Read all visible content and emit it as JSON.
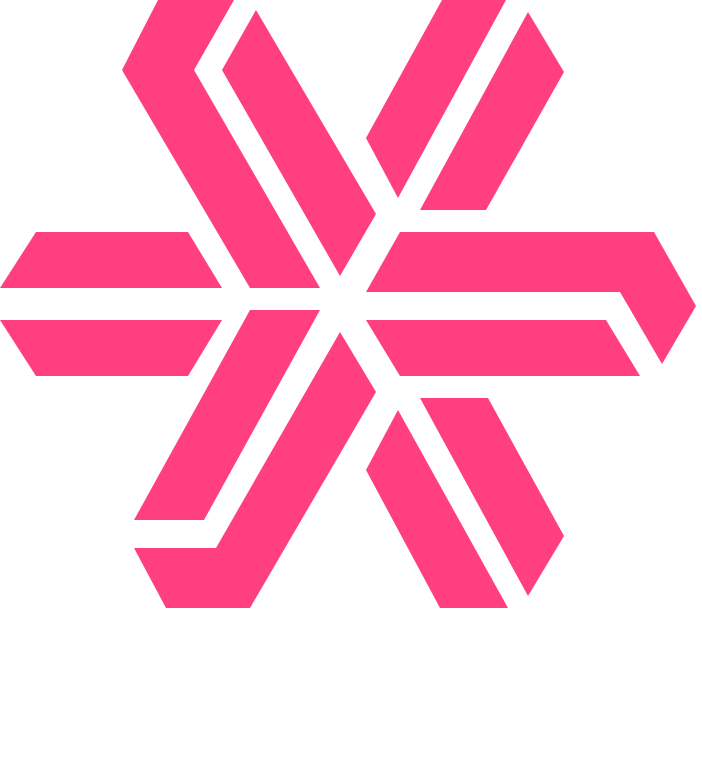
{
  "logo": {
    "icon": "snowflake-logo-icon",
    "color": "#FF3F80",
    "background": "#FFFFFF"
  }
}
